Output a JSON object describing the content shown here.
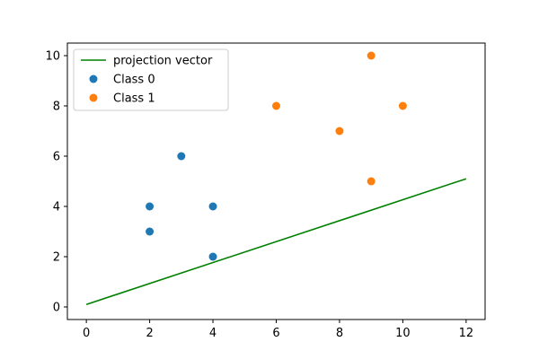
{
  "chart_data": {
    "type": "scatter",
    "title": "",
    "xlabel": "",
    "ylabel": "",
    "xlim": [
      -0.6,
      12.6
    ],
    "ylim": [
      -0.5,
      10.5
    ],
    "xticks": [
      0,
      2,
      4,
      6,
      8,
      10,
      12
    ],
    "yticks": [
      0,
      2,
      4,
      6,
      8,
      10
    ],
    "grid": false,
    "legend_position": "upper-left",
    "series": [
      {
        "name": "projection vector",
        "kind": "line",
        "color": "#008000",
        "points": [
          [
            0,
            0.1
          ],
          [
            12,
            5.1
          ]
        ]
      },
      {
        "name": "Class 0",
        "kind": "scatter",
        "color": "#1f77b4",
        "points": [
          [
            2,
            4
          ],
          [
            2,
            3
          ],
          [
            3,
            6
          ],
          [
            4,
            4
          ],
          [
            4,
            2
          ]
        ]
      },
      {
        "name": "Class 1",
        "kind": "scatter",
        "color": "#ff7f0e",
        "points": [
          [
            6,
            8
          ],
          [
            8,
            7
          ],
          [
            9,
            10
          ],
          [
            9,
            5
          ],
          [
            10,
            8
          ]
        ]
      }
    ]
  }
}
